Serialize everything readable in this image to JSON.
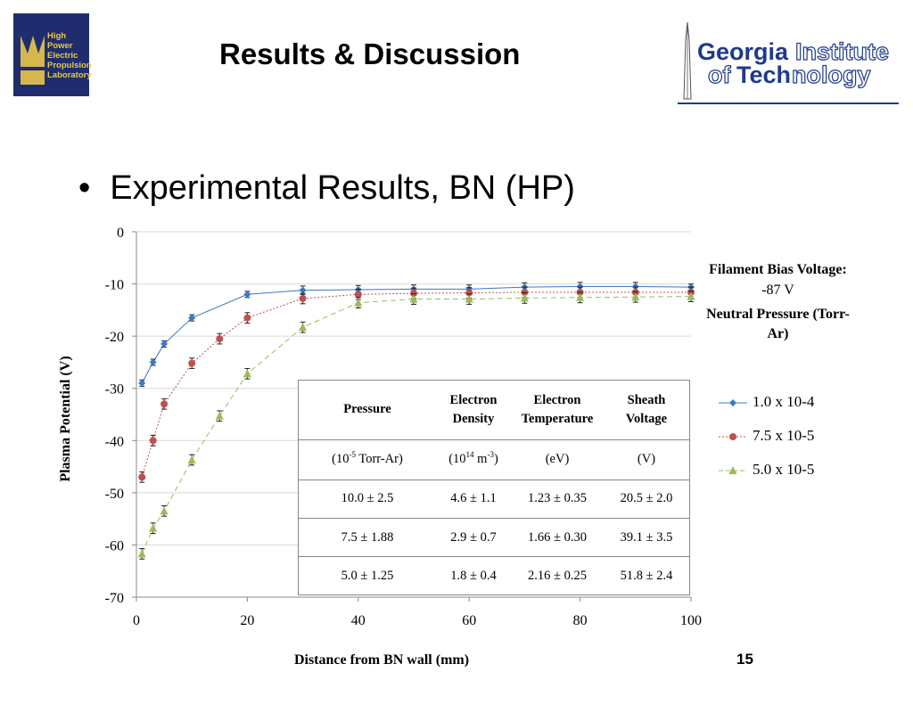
{
  "header": {
    "lab_logo_lines": [
      "High",
      "Power",
      "Electric",
      "Propulsion",
      "Laboratory"
    ],
    "title": "Results & Discussion",
    "institution_logo": {
      "word1": "Georgia",
      "word2": "Institute",
      "word3": "of",
      "word4": "Tech",
      "word5": "nology"
    }
  },
  "bullet": "Experimental Results, BN (HP)",
  "page_number": "15",
  "colors": {
    "series1": "#3a78c4",
    "series2": "#c0504d",
    "series3": "#9bbb59",
    "brand_blue": "#1f3a8a",
    "brand_gold": "#e8c84a"
  },
  "legend": {
    "bias_heading": "Filament Bias Voltage:",
    "bias_value": "-87 V",
    "pressure_heading": "Neutral Pressure (Torr-Ar)"
  },
  "table": {
    "headers": [
      "Pressure",
      "Electron Density",
      "Electron Temperature",
      "Sheath Voltage"
    ],
    "units": {
      "pressure": {
        "pre": "(10",
        "exp": "-5",
        "post": " Torr-Ar)"
      },
      "density": {
        "pre": "(10",
        "exp": "14",
        "mid": " m",
        "exp2": "-3",
        "post": ")"
      },
      "temperature": "(eV)",
      "sheath": "(V)"
    },
    "rows": [
      [
        "10.0 ± 2.5",
        "4.6 ± 1.1",
        "1.23 ± 0.35",
        "20.5 ± 2.0"
      ],
      [
        "7.5 ± 1.88",
        "2.9 ± 0.7",
        "1.66 ± 0.30",
        "39.1 ± 3.5"
      ],
      [
        "5.0 ± 1.25",
        "1.8 ± 0.4",
        "2.16 ± 0.25",
        "51.8 ± 2.4"
      ]
    ]
  },
  "chart_data": {
    "type": "line",
    "xlabel": "Distance from BN wall (mm)",
    "ylabel": "Plasma Potential (V)",
    "xlim": [
      0,
      100
    ],
    "ylim": [
      -70,
      0
    ],
    "xticks": [
      0,
      20,
      40,
      60,
      80,
      100
    ],
    "yticks": [
      0,
      -10,
      -20,
      -30,
      -40,
      -50,
      -60,
      -70
    ],
    "grid": "horizontal",
    "legend_position": "right",
    "series": [
      {
        "name": "1.0 x 10-4",
        "marker": "diamond",
        "dash": "solid",
        "x": [
          1,
          3,
          5,
          10,
          20,
          30,
          40,
          50,
          60,
          70,
          80,
          90,
          100
        ],
        "y": [
          -29,
          -25,
          -21.5,
          -16.5,
          -12,
          -11.2,
          -11.1,
          -11,
          -11,
          -10.6,
          -10.5,
          -10.5,
          -10.6
        ],
        "err": [
          0.6,
          0.6,
          0.6,
          0.6,
          0.6,
          0.8,
          0.8,
          0.8,
          0.8,
          0.8,
          0.8,
          0.8,
          0.6
        ]
      },
      {
        "name": "7.5 x 10-5",
        "marker": "circle",
        "dash": "dot",
        "x": [
          1,
          3,
          5,
          10,
          15,
          20,
          30,
          40,
          50,
          60,
          70,
          80,
          90,
          100
        ],
        "y": [
          -47,
          -40,
          -33,
          -25.2,
          -20.5,
          -16.5,
          -12.8,
          -12,
          -11.8,
          -11.7,
          -11.6,
          -11.6,
          -11.6,
          -11.6
        ],
        "err": [
          1.0,
          1.0,
          1.0,
          1.0,
          1.0,
          1.0,
          1.0,
          1.0,
          1.0,
          1.0,
          1.0,
          1.0,
          1.0,
          1.0
        ]
      },
      {
        "name": "5.0 x 10-5",
        "marker": "triangle",
        "dash": "dash",
        "x": [
          1,
          3,
          5,
          10,
          15,
          20,
          30,
          40,
          50,
          60,
          70,
          80,
          90,
          100
        ],
        "y": [
          -61.7,
          -56.8,
          -53.5,
          -43.7,
          -35.3,
          -27.2,
          -18.3,
          -13.6,
          -12.9,
          -12.9,
          -12.7,
          -12.6,
          -12.5,
          -12.4
        ],
        "err": [
          1.0,
          1.0,
          1.0,
          1.0,
          1.0,
          1.0,
          1.0,
          1.0,
          1.0,
          1.0,
          1.0,
          1.0,
          1.0,
          1.0
        ]
      }
    ]
  }
}
